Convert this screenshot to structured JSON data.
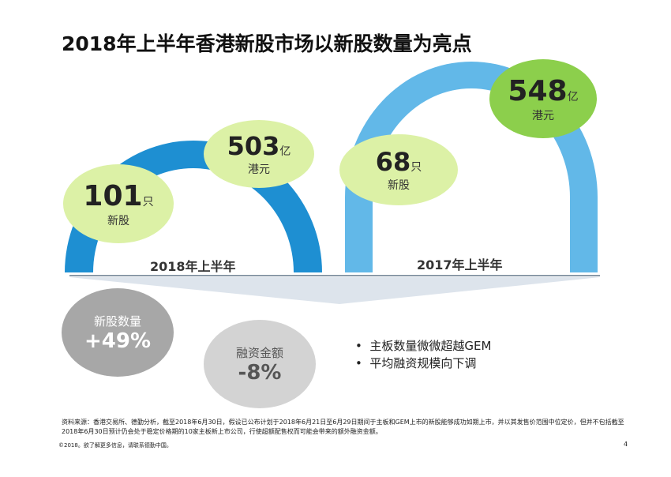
{
  "title": "2018年上半年香港新股市场以新股数量为亮点",
  "h2018": {
    "label": "2018年上半年",
    "ipo_count": "101",
    "ipo_unit": "只",
    "ipo_sub": "新股",
    "funds": "503",
    "funds_unit": "亿",
    "funds_sub": "港元"
  },
  "h2017": {
    "label": "2017年上半年",
    "ipo_count": "68",
    "ipo_unit": "只",
    "ipo_sub": "新股",
    "funds": "548",
    "funds_unit": "亿",
    "funds_sub": "港元"
  },
  "change": {
    "count_label": "新股数量",
    "count_value": "+49%",
    "funds_label": "融资金额",
    "funds_value": "-8%"
  },
  "bullets": [
    "主板数量微微超越GEM",
    "平均融资规模向下调"
  ],
  "footnote": "资料来源：香港交易所、德勤分析，截至2018年6月30日，假设已公布计划于2018年6月21日至6月29日期间于主板和GEM上市的新股能够成功如期上市，并以其发售价范围中位定价，但并不包括截至2018年6月30日预计仍会处于稳定价格期的10家主板新上市公司，行使超额配售权而可能会带来的额外融资金额。",
  "copyright": "©2018。欲了解更多信息，请联系德勤中国。",
  "page": "4",
  "colors": {
    "arc2018": "#1e8fd2",
    "arc2017": "#62b8e8",
    "light_green": "#dcf1a6",
    "green": "#8ccf4c"
  }
}
